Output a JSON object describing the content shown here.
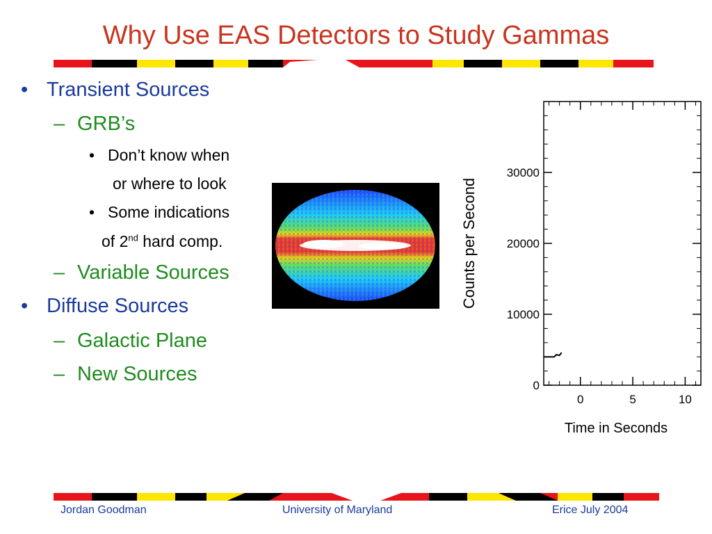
{
  "slide": {
    "title": "Why Use EAS Detectors to Study Gammas",
    "bullets": {
      "b1": "•",
      "b1_text": "Transient Sources",
      "b1a_dash": "–",
      "b1a_text": "GRB’s",
      "b1a1_dot": "•",
      "b1a1_text_line1": "Don’t know when",
      "b1a1_text_line2": "or where to look",
      "b1a2_dot": "•",
      "b1a2_text_line1": "Some indications",
      "b1a2_text_line2_pre": "of 2",
      "b1a2_text_line2_sup": "nd",
      "b1a2_text_line2_post": " hard comp.",
      "b1b_dash": "–",
      "b1b_text": "Variable Sources",
      "b2": "•",
      "b2_text": "Diffuse Sources",
      "b2a_dash": "–",
      "b2a_text": "Galactic Plane",
      "b2b_dash": "–",
      "b2b_text": "New Sources"
    },
    "footer": {
      "left": "Jordan Goodman",
      "center": "University of Maryland",
      "right": "Erice July 2004"
    },
    "colors": {
      "title": "#c8341e",
      "bullet_level1": "#1a3a9c",
      "bullet_level2": "#1f8a1f",
      "footer": "#1a3a9c",
      "stripe_red": "#e8141c",
      "stripe_yellow": "#ffe600",
      "stripe_black": "#000000"
    },
    "sky_map": {
      "description_icon": "all-sky-gamma-map-image"
    }
  },
  "chart_data": {
    "type": "line",
    "xlabel": "Time in Seconds",
    "ylabel": "Counts per Second",
    "xlim": [
      -3.5,
      11.5
    ],
    "ylim": [
      0,
      40000
    ],
    "x_ticks": [
      0,
      5,
      10
    ],
    "x_tick_labels": [
      "0",
      "5",
      "10"
    ],
    "y_ticks": [
      0,
      10000,
      20000,
      30000
    ],
    "y_tick_labels": [
      "0",
      "10000",
      "20000",
      "30000"
    ],
    "series": [
      {
        "x": [
          -3.5,
          -2.5,
          -2.3,
          -2.0,
          -1.8
        ],
        "y": [
          4000,
          4000,
          4300,
          4200,
          4600
        ]
      }
    ]
  }
}
